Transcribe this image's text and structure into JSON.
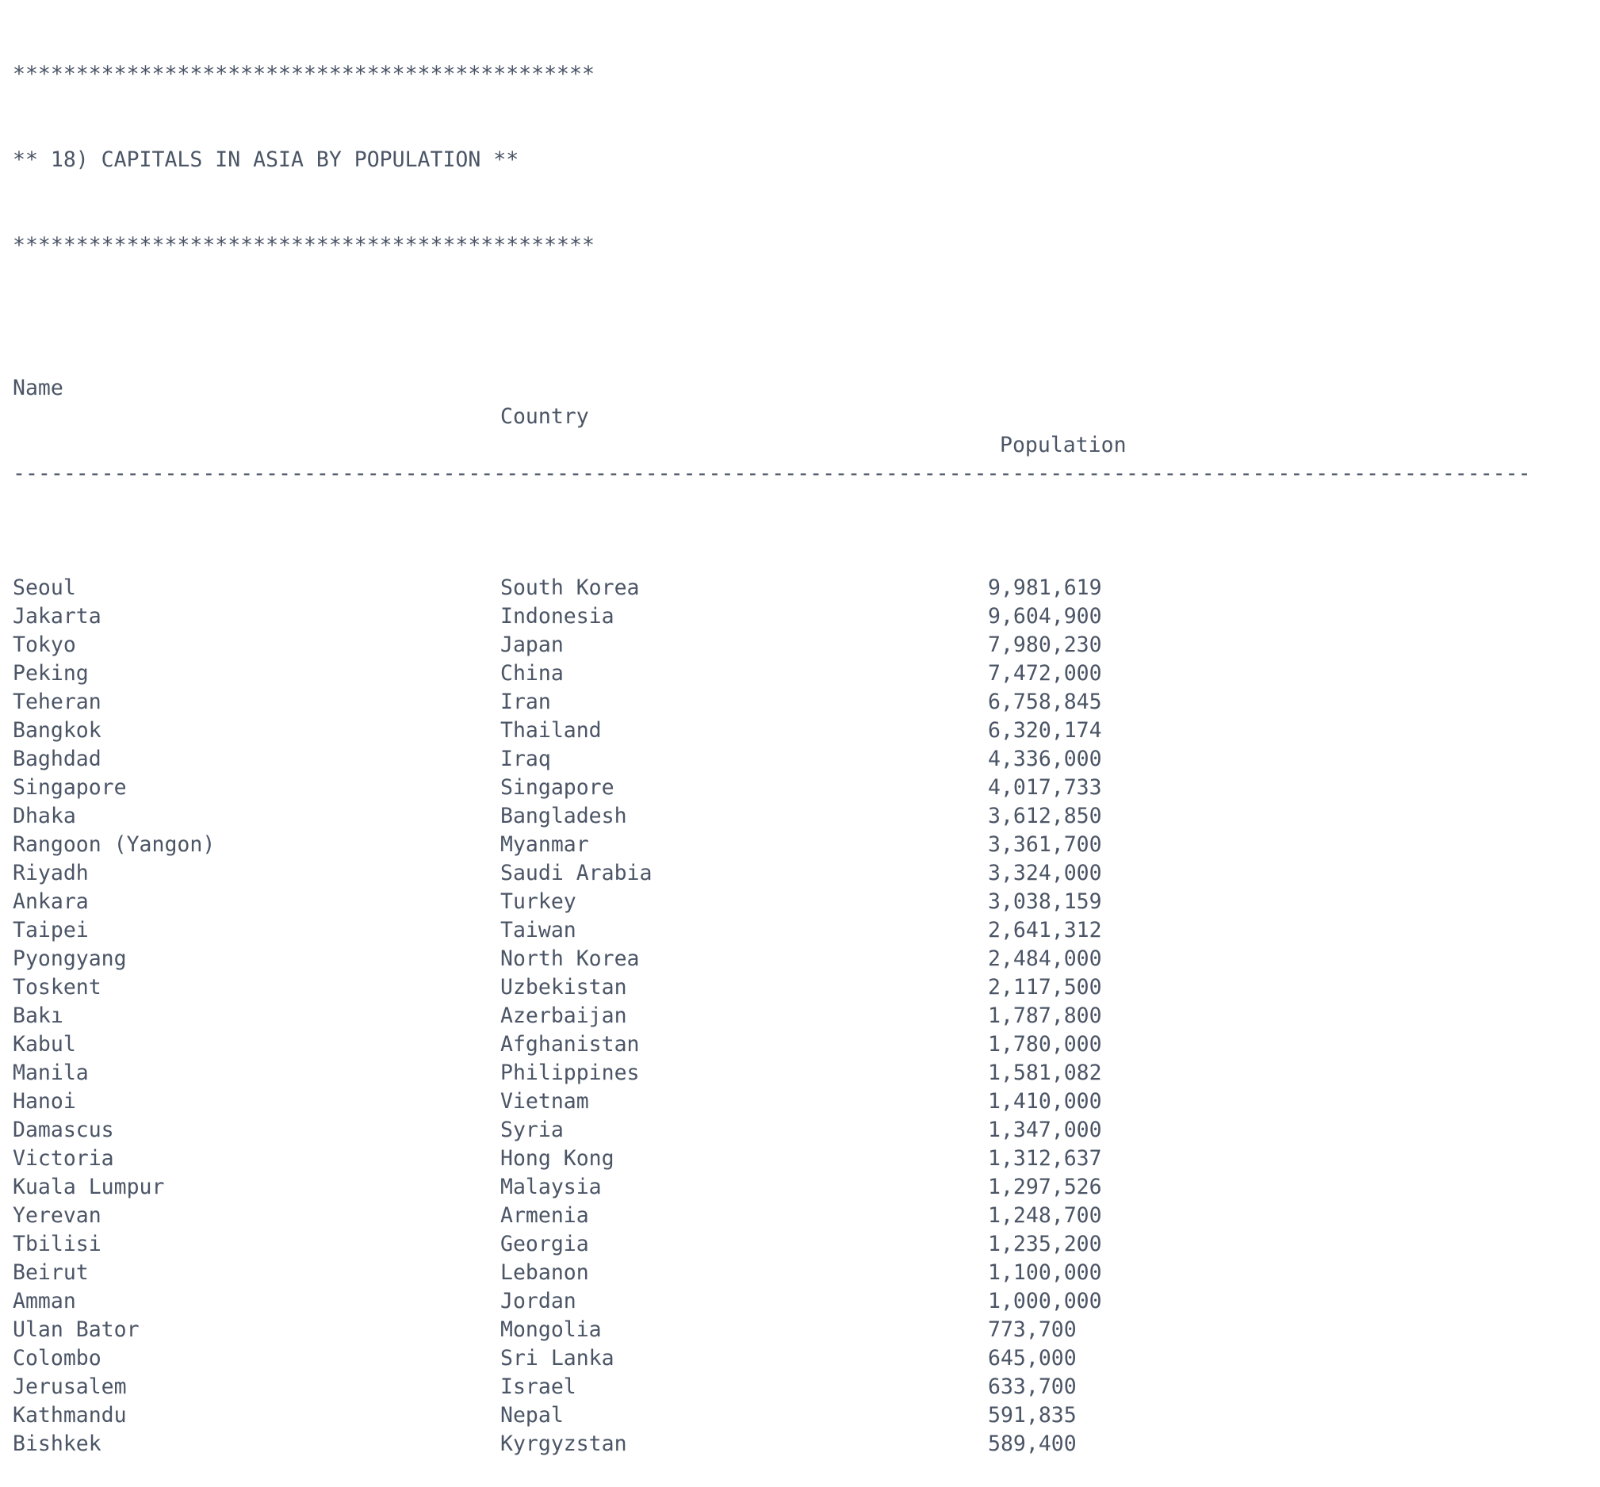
{
  "banner": {
    "stars_top": "**********************************************",
    "title": "** 18) CAPITALS IN ASIA BY POPULATION **",
    "stars_bottom": "**********************************************"
  },
  "table": {
    "headers": {
      "name": "Name",
      "country": "Country",
      "population": "Population"
    },
    "separator": "------------------------------------------------------------------------------------------------------------------------",
    "rows": [
      {
        "name": "Seoul",
        "country": "South Korea",
        "population": "9,981,619"
      },
      {
        "name": "Jakarta",
        "country": "Indonesia",
        "population": "9,604,900"
      },
      {
        "name": "Tokyo",
        "country": "Japan",
        "population": "7,980,230"
      },
      {
        "name": "Peking",
        "country": "China",
        "population": "7,472,000"
      },
      {
        "name": "Teheran",
        "country": "Iran",
        "population": "6,758,845"
      },
      {
        "name": "Bangkok",
        "country": "Thailand",
        "population": "6,320,174"
      },
      {
        "name": "Baghdad",
        "country": "Iraq",
        "population": "4,336,000"
      },
      {
        "name": "Singapore",
        "country": "Singapore",
        "population": "4,017,733"
      },
      {
        "name": "Dhaka",
        "country": "Bangladesh",
        "population": "3,612,850"
      },
      {
        "name": "Rangoon (Yangon)",
        "country": "Myanmar",
        "population": "3,361,700"
      },
      {
        "name": "Riyadh",
        "country": "Saudi Arabia",
        "population": "3,324,000"
      },
      {
        "name": "Ankara",
        "country": "Turkey",
        "population": "3,038,159"
      },
      {
        "name": "Taipei",
        "country": "Taiwan",
        "population": "2,641,312"
      },
      {
        "name": "Pyongyang",
        "country": "North Korea",
        "population": "2,484,000"
      },
      {
        "name": "Toskent",
        "country": "Uzbekistan",
        "population": "2,117,500"
      },
      {
        "name": "Bakı",
        "country": "Azerbaijan",
        "population": "1,787,800"
      },
      {
        "name": "Kabul",
        "country": "Afghanistan",
        "population": "1,780,000"
      },
      {
        "name": "Manila",
        "country": "Philippines",
        "population": "1,581,082"
      },
      {
        "name": "Hanoi",
        "country": "Vietnam",
        "population": "1,410,000"
      },
      {
        "name": "Damascus",
        "country": "Syria",
        "population": "1,347,000"
      },
      {
        "name": "Victoria",
        "country": "Hong Kong",
        "population": "1,312,637"
      },
      {
        "name": "Kuala Lumpur",
        "country": "Malaysia",
        "population": "1,297,526"
      },
      {
        "name": "Yerevan",
        "country": "Armenia",
        "population": "1,248,700"
      },
      {
        "name": "Tbilisi",
        "country": "Georgia",
        "population": "1,235,200"
      },
      {
        "name": "Beirut",
        "country": "Lebanon",
        "population": "1,100,000"
      },
      {
        "name": "Amman",
        "country": "Jordan",
        "population": "1,000,000"
      },
      {
        "name": "Ulan Bator",
        "country": "Mongolia",
        "population": "773,700"
      },
      {
        "name": "Colombo",
        "country": "Sri Lanka",
        "population": "645,000"
      },
      {
        "name": "Jerusalem",
        "country": "Israel",
        "population": "633,700"
      },
      {
        "name": "Kathmandu",
        "country": "Nepal",
        "population": "591,835"
      },
      {
        "name": "Bishkek",
        "country": "Kyrgyzstan",
        "population": "589,400"
      }
    ]
  }
}
